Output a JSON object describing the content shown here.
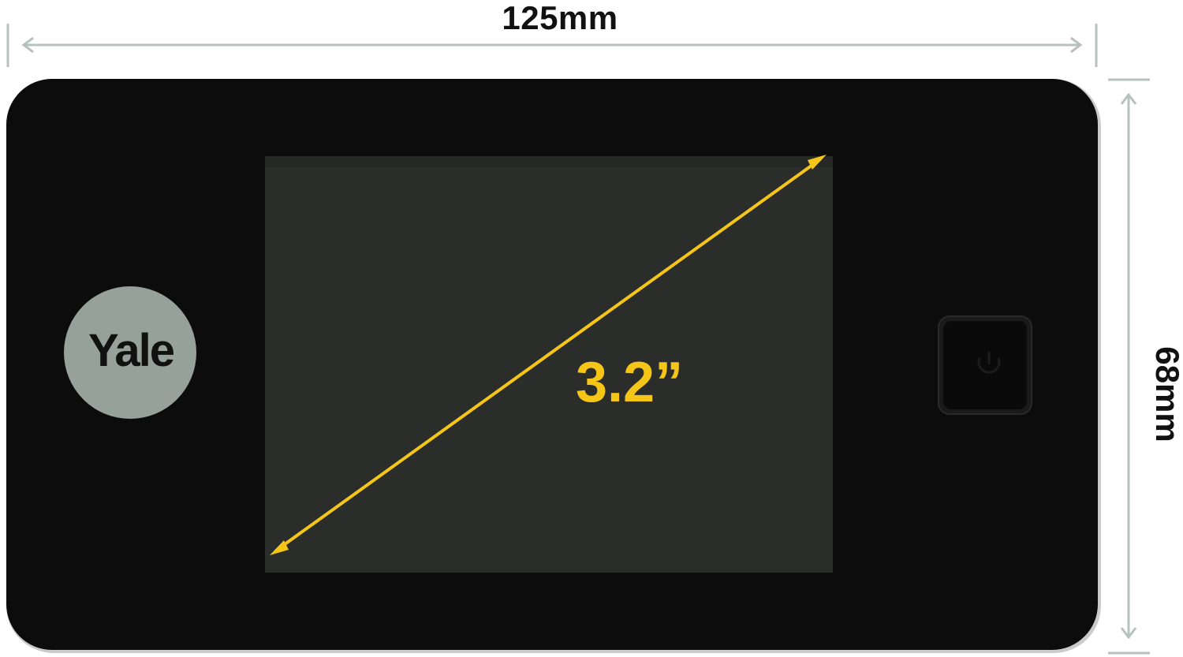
{
  "dimensions": {
    "width_label": "125mm",
    "height_label": "68mm",
    "screen_diagonal_label": "3.2”"
  },
  "device": {
    "brand_logo": "Yale",
    "power_button_icon": "power-icon"
  },
  "colors": {
    "device_body": "#0c0c0c",
    "bezel_frame": "#c9ccc9",
    "screen": "#2b2d2b",
    "logo_badge": "#97a19c",
    "diagonal_arrow": "#f5c518",
    "dimension_lines": "#b8c2bd",
    "label_text": "#111111"
  }
}
